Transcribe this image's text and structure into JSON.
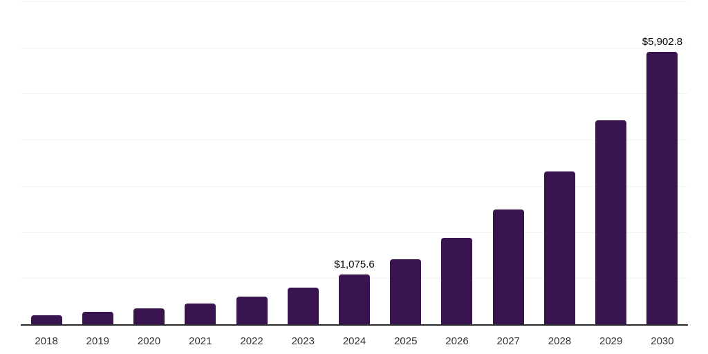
{
  "chart_data": {
    "type": "bar",
    "title": "",
    "xlabel": "",
    "ylabel": "",
    "categories": [
      "2018",
      "2019",
      "2020",
      "2021",
      "2022",
      "2023",
      "2024",
      "2025",
      "2026",
      "2027",
      "2028",
      "2029",
      "2030"
    ],
    "values": [
      190,
      265,
      340,
      450,
      600,
      800,
      1075.6,
      1415,
      1880,
      2490,
      3315,
      4425,
      5902.8
    ],
    "data_labels": [
      null,
      null,
      null,
      null,
      null,
      null,
      "$1,075.6",
      null,
      null,
      null,
      null,
      null,
      "$5,902.8"
    ],
    "labeled_points": [
      {
        "category": "2024",
        "label": "$1,075.6",
        "value": 1075.6
      },
      {
        "category": "2030",
        "label": "$5,902.8",
        "value": 5902.8
      }
    ],
    "ylim": [
      0,
      7000
    ],
    "gridline_values": [
      1000,
      2000,
      3000,
      4000,
      5000,
      6000,
      7000
    ],
    "grid": "horizontal-only",
    "legend": "none",
    "y_axis_tick_labels_visible": false,
    "bar_color": "#38154F",
    "axis_line_color": "#2b2b2b",
    "gridline_color": "#f2f2f2",
    "tick_label_color": "#333333",
    "data_label_color": "#000000",
    "background_color": "#ffffff"
  }
}
